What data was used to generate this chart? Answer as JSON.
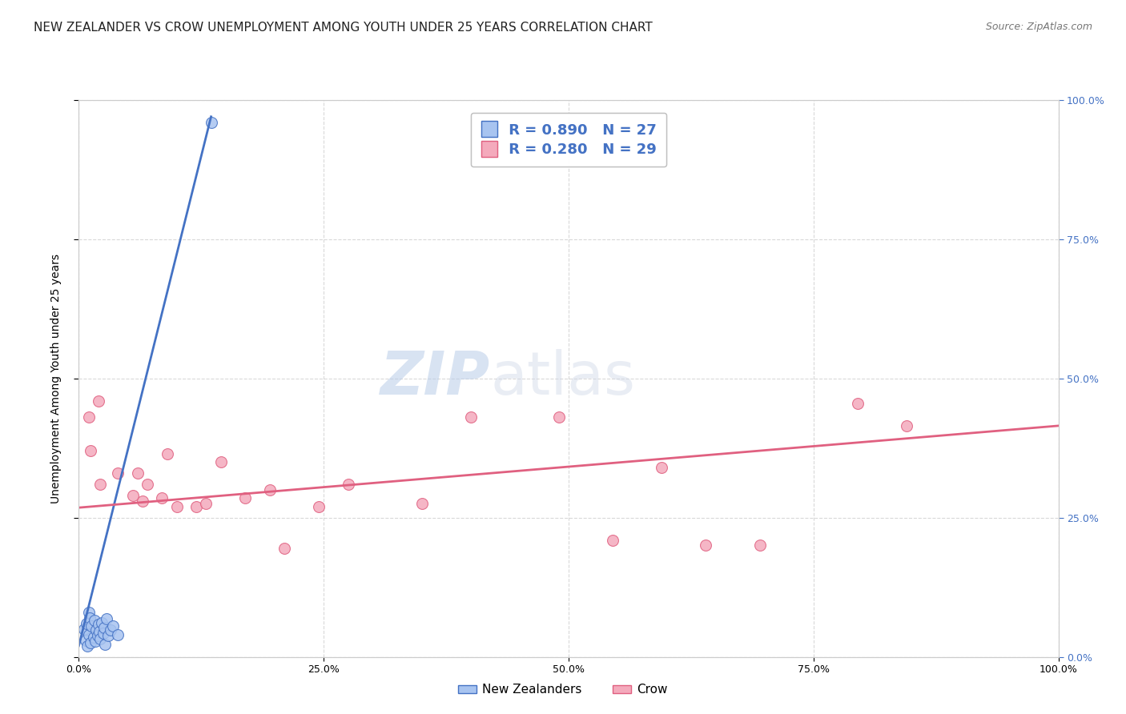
{
  "title": "NEW ZEALANDER VS CROW UNEMPLOYMENT AMONG YOUTH UNDER 25 YEARS CORRELATION CHART",
  "source": "Source: ZipAtlas.com",
  "ylabel": "Unemployment Among Youth under 25 years",
  "xlim": [
    0.0,
    1.0
  ],
  "ylim": [
    0.0,
    1.0
  ],
  "xtick_labels": [
    "0.0%",
    "25.0%",
    "50.0%",
    "75.0%",
    "100.0%"
  ],
  "xtick_vals": [
    0.0,
    0.25,
    0.5,
    0.75,
    1.0
  ],
  "ytick_vals": [
    0.0,
    0.25,
    0.5,
    0.75,
    1.0
  ],
  "right_ytick_labels": [
    "0.0%",
    "25.0%",
    "50.0%",
    "75.0%",
    "100.0%"
  ],
  "watermark_zip": "ZIP",
  "watermark_atlas": "atlas",
  "nz_color": "#a8c4f0",
  "nz_edge_color": "#4472c4",
  "crow_color": "#f4aabc",
  "crow_edge_color": "#e06080",
  "nz_R": 0.89,
  "nz_N": 27,
  "crow_R": 0.28,
  "crow_N": 29,
  "legend_label_nz": "New Zealanders",
  "legend_label_crow": "Crow",
  "nz_scatter_x": [
    0.005,
    0.007,
    0.008,
    0.009,
    0.01,
    0.01,
    0.011,
    0.012,
    0.013,
    0.015,
    0.016,
    0.017,
    0.018,
    0.019,
    0.02,
    0.021,
    0.022,
    0.023,
    0.025,
    0.026,
    0.027,
    0.028,
    0.03,
    0.032,
    0.035,
    0.04,
    0.135
  ],
  "nz_scatter_y": [
    0.05,
    0.03,
    0.06,
    0.02,
    0.08,
    0.04,
    0.07,
    0.025,
    0.055,
    0.035,
    0.065,
    0.028,
    0.048,
    0.038,
    0.058,
    0.045,
    0.032,
    0.062,
    0.042,
    0.052,
    0.022,
    0.068,
    0.038,
    0.048,
    0.055,
    0.04,
    0.96
  ],
  "crow_scatter_x": [
    0.01,
    0.012,
    0.02,
    0.022,
    0.04,
    0.055,
    0.06,
    0.065,
    0.07,
    0.085,
    0.09,
    0.1,
    0.12,
    0.13,
    0.145,
    0.17,
    0.195,
    0.21,
    0.245,
    0.275,
    0.35,
    0.4,
    0.49,
    0.545,
    0.595,
    0.64,
    0.695,
    0.795,
    0.845
  ],
  "crow_scatter_y": [
    0.43,
    0.37,
    0.46,
    0.31,
    0.33,
    0.29,
    0.33,
    0.28,
    0.31,
    0.285,
    0.365,
    0.27,
    0.27,
    0.275,
    0.35,
    0.285,
    0.3,
    0.195,
    0.27,
    0.31,
    0.275,
    0.43,
    0.43,
    0.21,
    0.34,
    0.2,
    0.2,
    0.455,
    0.415
  ],
  "nz_line_x": [
    0.0,
    0.135
  ],
  "nz_line_y": [
    0.02,
    0.97
  ],
  "crow_line_x": [
    0.0,
    1.0
  ],
  "crow_line_y": [
    0.268,
    0.415
  ],
  "background_color": "#ffffff",
  "grid_color": "#d0d0d0",
  "title_fontsize": 11,
  "axis_label_fontsize": 10,
  "tick_fontsize": 9,
  "legend_fontsize": 13,
  "stat_color": "#4472c4"
}
